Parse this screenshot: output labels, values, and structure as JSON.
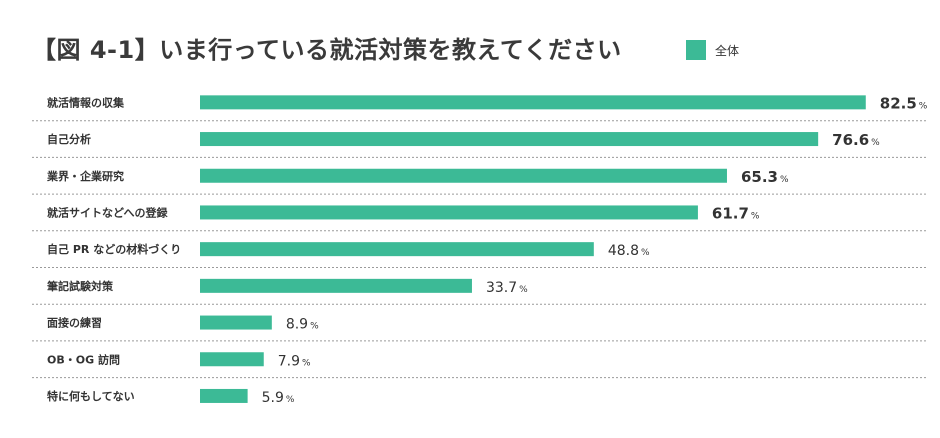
{
  "chart_data": {
    "type": "bar",
    "orientation": "horizontal",
    "title": "【図 4-1】いま行っている就活対策を教えてください",
    "legend": [
      {
        "name": "全体",
        "color": "#3cba96"
      }
    ],
    "legend_position": "top-right",
    "categories": [
      "就活情報の収集",
      "自己分析",
      "業界・企業研究",
      "就活サイトなどへの登録",
      "自己 PR などの材料づくり",
      "筆記試験対策",
      "面接の練習",
      "OB・OG 訪問",
      "特に何もしてない"
    ],
    "series": [
      {
        "name": "全体",
        "values": [
          82.5,
          76.6,
          65.3,
          61.7,
          48.8,
          33.7,
          8.9,
          7.9,
          5.9
        ]
      }
    ],
    "value_labels": [
      "82.5",
      "76.6",
      "65.3",
      "61.7",
      "48.8",
      "33.7",
      "8.9",
      "7.9",
      "5.9"
    ],
    "bold_label_indices": [
      0,
      1,
      2,
      3
    ],
    "unit": "%",
    "xlim": [
      0,
      100
    ],
    "grid": false
  }
}
